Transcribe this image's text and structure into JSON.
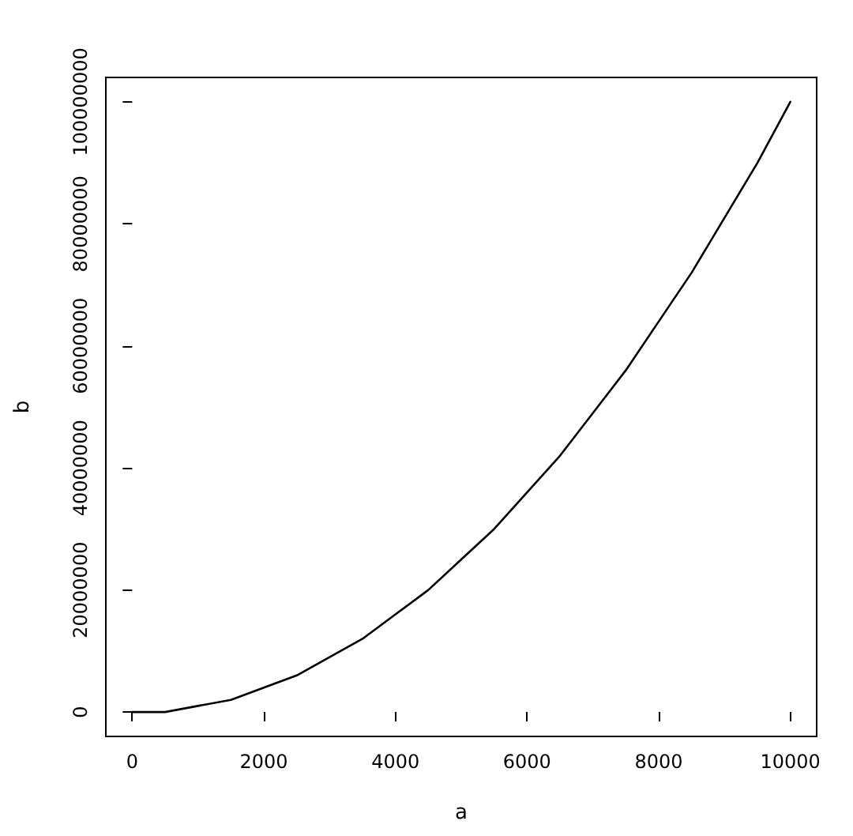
{
  "chart_data": {
    "type": "line",
    "xlabel": "a",
    "ylabel": "b",
    "x": [
      0,
      500,
      1000,
      1500,
      2000,
      2500,
      3000,
      3500,
      4000,
      4500,
      5000,
      5500,
      6000,
      6500,
      7000,
      7500,
      8000,
      8500,
      9000,
      9500,
      10000
    ],
    "series": [
      {
        "color": "#000000",
        "values": [
          0,
          0,
          1000000,
          2000000,
          4000000,
          6000000,
          9000000,
          12000000,
          16000000,
          20000000,
          25000000,
          30000000,
          36000000,
          42000000,
          49000000,
          56000000,
          64000000,
          72000000,
          81000000,
          90000000,
          100000000
        ]
      }
    ],
    "xlim": [
      -400,
      10400
    ],
    "ylim": [
      -4000000,
      104000000
    ],
    "xticks": [
      0,
      2000,
      4000,
      6000,
      8000,
      10000
    ],
    "yticks": [
      0,
      20000000,
      40000000,
      60000000,
      80000000,
      100000000
    ],
    "marker": "none",
    "line_style": "solid"
  }
}
